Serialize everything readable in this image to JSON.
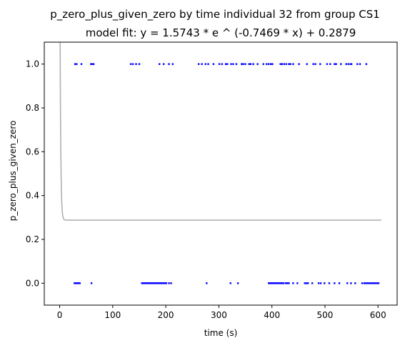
{
  "chart_data": {
    "type": "scatter",
    "title": "p_zero_plus_given_zero by time individual 32 from group CS1",
    "subtitle": "model fit: y = 1.5743 * e ^ (-0.7469 * x) + 0.2879",
    "xlabel": "time (s)",
    "ylabel": "p_zero_plus_given_zero",
    "xlim": [
      -29,
      636
    ],
    "ylim": [
      -0.1,
      1.1
    ],
    "x_ticks": [
      0,
      100,
      200,
      300,
      400,
      500,
      600
    ],
    "x_tick_labels": [
      "0",
      "100",
      "200",
      "300",
      "400",
      "500",
      "600"
    ],
    "y_ticks": [
      0.0,
      0.2,
      0.4,
      0.6,
      0.8,
      1.0
    ],
    "y_tick_labels": [
      "0.0",
      "0.2",
      "0.4",
      "0.6",
      "0.8",
      "1.0"
    ],
    "grid": false,
    "fit": {
      "a": 1.5743,
      "b": -0.7469,
      "c": 0.2879,
      "x_range": [
        0,
        606
      ],
      "color": "#b0b0b0"
    },
    "points_color": "#0000ff",
    "points_y1": [
      29,
      32,
      41,
      59,
      62,
      64,
      134,
      138,
      144,
      150,
      188,
      196,
      206,
      213,
      262,
      268,
      275,
      280,
      290,
      301,
      306,
      313,
      316,
      323,
      327,
      333,
      343,
      346,
      350,
      357,
      360,
      365,
      373,
      384,
      390,
      394,
      398,
      401,
      416,
      419,
      423,
      427,
      432,
      435,
      440,
      451,
      466,
      478,
      482,
      491,
      504,
      510,
      518,
      521,
      530,
      540,
      544,
      548,
      550,
      561,
      566,
      578
    ],
    "points_y0": [
      28,
      30,
      32,
      34,
      36,
      38,
      60,
      155,
      157,
      159,
      161,
      163,
      165,
      167,
      169,
      171,
      173,
      175,
      177,
      179,
      181,
      183,
      185,
      187,
      189,
      191,
      193,
      195,
      197,
      199,
      201,
      206,
      210,
      277,
      322,
      336,
      394,
      396,
      398,
      400,
      402,
      404,
      406,
      408,
      410,
      412,
      414,
      416,
      418,
      420,
      422,
      426,
      428,
      430,
      432,
      440,
      448,
      462,
      465,
      468,
      476,
      488,
      492,
      499,
      508,
      518,
      527,
      542,
      549,
      557,
      570,
      574,
      577,
      580,
      583,
      586,
      589,
      592,
      595,
      598,
      601
    ]
  }
}
